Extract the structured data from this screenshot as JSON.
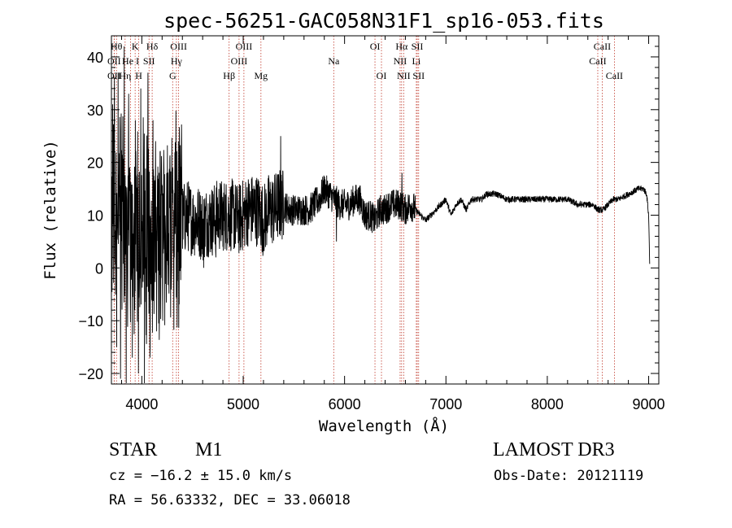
{
  "chart_data": {
    "type": "line",
    "title": "spec-56251-GAC058N31F1_sp16-053.fits",
    "xlabel": "Wavelength (Å)",
    "ylabel": "Flux (relative)",
    "xlim": [
      3700,
      9100
    ],
    "ylim": [
      -22,
      44
    ],
    "xticks": [
      4000,
      5000,
      6000,
      7000,
      8000,
      9000
    ],
    "yticks": [
      -20,
      -10,
      0,
      10,
      20,
      30,
      40
    ],
    "x_tick_labels": [
      "4000",
      "5000",
      "6000",
      "7000",
      "8000",
      "9000"
    ],
    "y_tick_labels": [
      "−20",
      "−10",
      "0",
      "10",
      "20",
      "30",
      "40"
    ],
    "series": [
      {
        "name": "spectrum",
        "anchors": [
          [
            3700,
            10
          ],
          [
            3750,
            12
          ],
          [
            3800,
            10
          ],
          [
            3850,
            8
          ],
          [
            3900,
            8
          ],
          [
            3950,
            7
          ],
          [
            4000,
            7
          ],
          [
            4050,
            6
          ],
          [
            4100,
            6
          ],
          [
            4150,
            6
          ],
          [
            4200,
            6
          ],
          [
            4250,
            5
          ],
          [
            4300,
            6
          ],
          [
            4350,
            7
          ],
          [
            4400,
            9
          ],
          [
            4450,
            10
          ],
          [
            4500,
            9
          ],
          [
            4550,
            9
          ],
          [
            4600,
            8
          ],
          [
            4650,
            9
          ],
          [
            4700,
            9
          ],
          [
            4750,
            10
          ],
          [
            4800,
            10
          ],
          [
            4850,
            10
          ],
          [
            4900,
            10
          ],
          [
            4950,
            9
          ],
          [
            5000,
            10
          ],
          [
            5050,
            11
          ],
          [
            5100,
            11
          ],
          [
            5150,
            11
          ],
          [
            5200,
            9
          ],
          [
            5250,
            11
          ],
          [
            5300,
            11
          ],
          [
            5350,
            12
          ],
          [
            5400,
            12
          ],
          [
            5450,
            11
          ],
          [
            5500,
            11
          ],
          [
            5550,
            11
          ],
          [
            5600,
            11
          ],
          [
            5650,
            11
          ],
          [
            5700,
            12
          ],
          [
            5750,
            13
          ],
          [
            5800,
            15
          ],
          [
            5850,
            14
          ],
          [
            5900,
            13
          ],
          [
            5950,
            12
          ],
          [
            6000,
            12
          ],
          [
            6050,
            12
          ],
          [
            6100,
            13
          ],
          [
            6150,
            13
          ],
          [
            6200,
            10
          ],
          [
            6250,
            10
          ],
          [
            6300,
            9
          ],
          [
            6350,
            11
          ],
          [
            6400,
            11
          ],
          [
            6450,
            12
          ],
          [
            6500,
            12
          ],
          [
            6550,
            12
          ],
          [
            6600,
            11
          ],
          [
            6650,
            12
          ],
          [
            6700,
            11
          ],
          [
            6750,
            10
          ],
          [
            6800,
            9
          ],
          [
            6850,
            10
          ],
          [
            6900,
            11
          ],
          [
            6950,
            12
          ],
          [
            7000,
            13
          ],
          [
            7050,
            10
          ],
          [
            7100,
            12
          ],
          [
            7150,
            13
          ],
          [
            7200,
            11
          ],
          [
            7250,
            13
          ],
          [
            7300,
            13
          ],
          [
            7350,
            13
          ],
          [
            7400,
            14
          ],
          [
            7450,
            14
          ],
          [
            7500,
            14
          ],
          [
            7600,
            13
          ],
          [
            7700,
            13
          ],
          [
            7800,
            13
          ],
          [
            7900,
            13
          ],
          [
            8000,
            13
          ],
          [
            8100,
            13
          ],
          [
            8200,
            13
          ],
          [
            8300,
            12
          ],
          [
            8400,
            12
          ],
          [
            8450,
            12
          ],
          [
            8500,
            11
          ],
          [
            8550,
            11
          ],
          [
            8600,
            12
          ],
          [
            8650,
            13
          ],
          [
            8700,
            13
          ],
          [
            8800,
            14
          ],
          [
            8900,
            15
          ],
          [
            8950,
            15
          ],
          [
            8980,
            14
          ],
          [
            9000,
            10
          ],
          [
            9010,
            1
          ]
        ],
        "features": [
          [
            3712,
            31
          ],
          [
            3730,
            36
          ],
          [
            3752,
            -15
          ],
          [
            3765,
            37
          ],
          [
            3790,
            -21
          ],
          [
            3825,
            42
          ],
          [
            3845,
            -22
          ],
          [
            3870,
            33
          ],
          [
            3905,
            -17
          ],
          [
            3935,
            28
          ],
          [
            3965,
            -20
          ],
          [
            3990,
            34
          ],
          [
            4025,
            -22
          ],
          [
            4060,
            37
          ],
          [
            4080,
            -17
          ],
          [
            4110,
            28
          ],
          [
            4145,
            -12
          ],
          [
            4180,
            22
          ],
          [
            4205,
            -10
          ],
          [
            4245,
            18
          ],
          [
            4290,
            -4
          ],
          [
            4320,
            2
          ],
          [
            4610,
            0
          ],
          [
            4730,
            2
          ],
          [
            4800,
            4
          ],
          [
            5195,
            3
          ],
          [
            5200,
            4
          ],
          [
            5370,
            25
          ],
          [
            5920,
            5
          ],
          [
            6565,
            18
          ],
          [
            6600,
            10
          ]
        ],
        "noise": [
          {
            "from": 3700,
            "to": 4400,
            "amplitude": 24
          },
          {
            "from": 4400,
            "to": 5400,
            "amplitude": 7
          },
          {
            "from": 5400,
            "to": 6700,
            "amplitude": 3
          },
          {
            "from": 6700,
            "to": 9100,
            "amplitude": 0.6
          }
        ]
      }
    ],
    "lines": [
      {
        "wl": 3750,
        "label": "Hθ",
        "row": 0
      },
      {
        "wl": 3727,
        "label": "OII",
        "row": 1
      },
      {
        "wl": 3727,
        "label": "OII",
        "row": 2
      },
      {
        "wl": 3889,
        "label": "He I",
        "row": 1
      },
      {
        "wl": 3835,
        "label": "Hη",
        "row": 2
      },
      {
        "wl": 3934,
        "label": "K",
        "row": 0
      },
      {
        "wl": 3969,
        "label": "H",
        "row": 2
      },
      {
        "wl": 4102,
        "label": "Hδ",
        "row": 0
      },
      {
        "wl": 4071,
        "label": "SII",
        "row": 1
      },
      {
        "wl": 4363,
        "label": "OIII",
        "row": 0
      },
      {
        "wl": 4341,
        "label": "Hγ",
        "row": 1
      },
      {
        "wl": 4304,
        "label": "G",
        "row": 2
      },
      {
        "wl": 4861,
        "label": "Hβ",
        "row": 2
      },
      {
        "wl": 5007,
        "label": "OIII",
        "row": 0
      },
      {
        "wl": 4959,
        "label": "OIII",
        "row": 1
      },
      {
        "wl": 5175,
        "label": "Mg",
        "row": 2
      },
      {
        "wl": 5893,
        "label": "Na",
        "row": 1
      },
      {
        "wl": 6300,
        "label": "OI",
        "row": 0
      },
      {
        "wl": 6364,
        "label": "OI",
        "row": 2
      },
      {
        "wl": 6563,
        "label": "Hα",
        "row": 0
      },
      {
        "wl": 6548,
        "label": "NII",
        "row": 1
      },
      {
        "wl": 6583,
        "label": "NII",
        "row": 2
      },
      {
        "wl": 6717,
        "label": "SII",
        "row": 0
      },
      {
        "wl": 6708,
        "label": "Li",
        "row": 1
      },
      {
        "wl": 6731,
        "label": "SII",
        "row": 2
      },
      {
        "wl": 8542,
        "label": "CaII",
        "row": 0
      },
      {
        "wl": 8498,
        "label": "CaII",
        "row": 1
      },
      {
        "wl": 8662,
        "label": "CaII",
        "row": 2
      }
    ],
    "line_label_texts": [
      "Hθ",
      "OII",
      "He I",
      "Hη",
      "K",
      "H",
      "Hδ",
      "SII",
      "OIII",
      "Hγ",
      "G",
      "Hβ",
      "Mg",
      "Na",
      "OI",
      "Hα",
      "NII",
      "Li",
      "CaII"
    ]
  },
  "info": {
    "class": "STAR",
    "subclass": "M1",
    "survey": "LAMOST DR3",
    "cz": "cz = −16.2 ± 15.0 km/s",
    "obs_date": "Obs-Date: 20121119",
    "coords": "RA =  56.63332, DEC =  33.06018"
  },
  "colors": {
    "axis": "#000000",
    "spectrum": "#000000",
    "line_marker": "#c0392b"
  }
}
